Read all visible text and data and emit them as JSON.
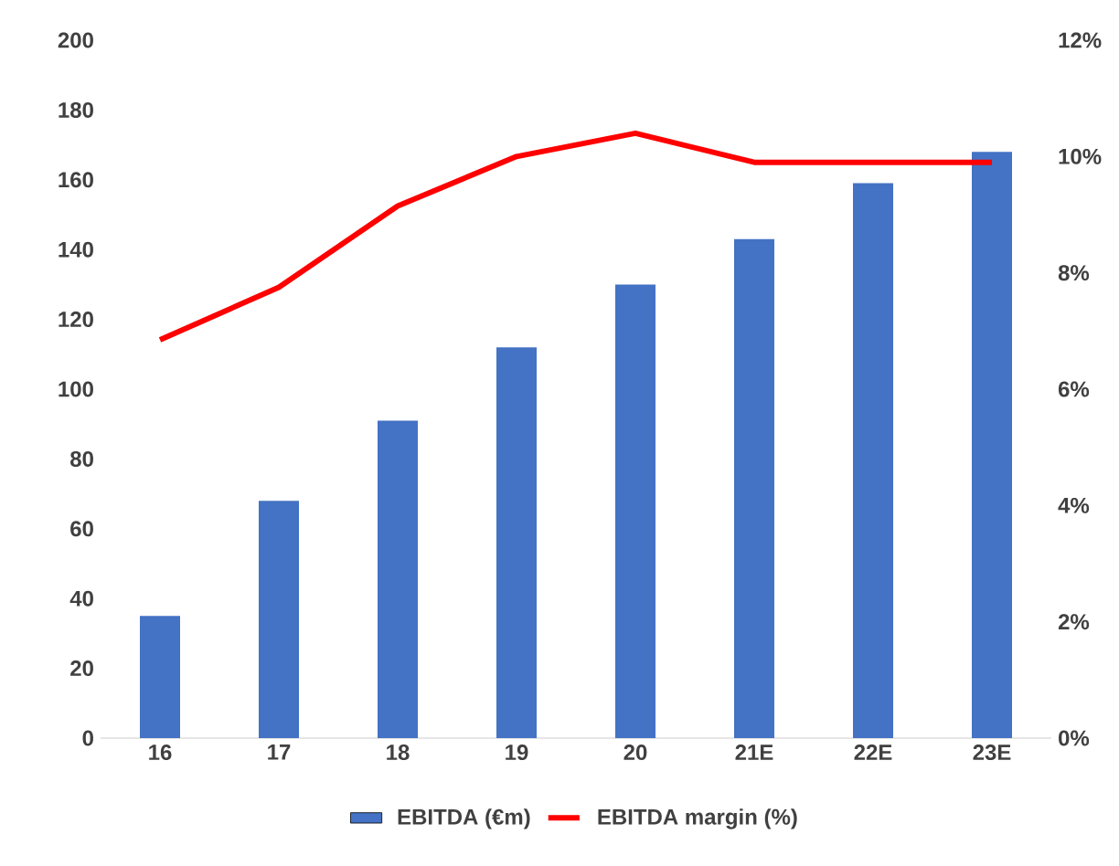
{
  "chart_data": {
    "type": "bar",
    "categories": [
      "16",
      "17",
      "18",
      "19",
      "20",
      "21E",
      "22E",
      "23E"
    ],
    "series": [
      {
        "name": "EBITDA (€m)",
        "color": "#4472c4",
        "values": [
          35,
          68,
          91,
          112,
          130,
          143,
          159,
          168
        ]
      },
      {
        "name": "EBITDA margin (%)",
        "type": "line",
        "axis": "y2",
        "color": "#ff0000",
        "marker": "none",
        "line_style": "solid",
        "values": [
          6.85,
          7.75,
          9.15,
          10.0,
          10.4,
          9.9,
          9.9,
          9.9
        ]
      }
    ],
    "ylim": [
      0,
      200
    ],
    "yticks": [
      0,
      20,
      40,
      60,
      80,
      100,
      120,
      140,
      160,
      180,
      200
    ],
    "y2lim": [
      0,
      12
    ],
    "y2ticks": [
      {
        "value": 0,
        "label": "0%"
      },
      {
        "value": 2,
        "label": "2%"
      },
      {
        "value": 4,
        "label": "4%"
      },
      {
        "value": 6,
        "label": "6%"
      },
      {
        "value": 8,
        "label": "8%"
      },
      {
        "value": 10,
        "label": "10%"
      },
      {
        "value": 12,
        "label": "12%"
      }
    ],
    "grid": false,
    "legend": "bottom"
  }
}
